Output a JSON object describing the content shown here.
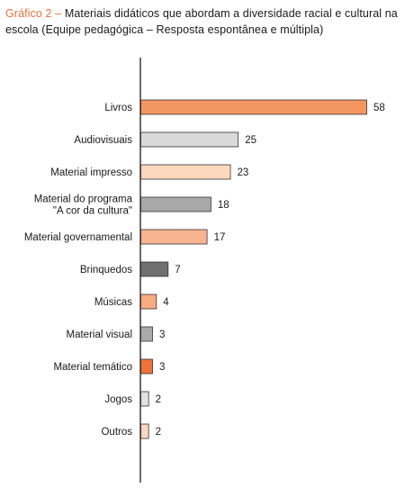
{
  "header": {
    "lead": "Gráfico 2 –",
    "text": "Materiais didáticos que abordam a diversidade racial e cultural na escola (Equipe pedagógica – Resposta espontânea e múltipla)"
  },
  "colors": {
    "accent": "#e8733a"
  },
  "chart_data": {
    "type": "bar",
    "orientation": "horizontal",
    "title": "Gráfico 2 – Materiais didáticos que abordam a diversidade racial e cultural na escola (Equipe pedagógica – Resposta espontânea e múltipla)",
    "categories": [
      [
        "Livros"
      ],
      [
        "Audiovisuais"
      ],
      [
        "Material impresso"
      ],
      [
        "Material do programa",
        "\"A cor da cultura\""
      ],
      [
        "Material governamental"
      ],
      [
        "Brinquedos"
      ],
      [
        "Músicas"
      ],
      [
        "Material visual"
      ],
      [
        "Material temático"
      ],
      [
        "Jogos"
      ],
      [
        "Outros"
      ]
    ],
    "values": [
      58,
      25,
      23,
      18,
      17,
      7,
      4,
      3,
      3,
      2,
      2
    ],
    "bar_colors": [
      "#f4965f",
      "#d9d9d9",
      "#fcd8bd",
      "#a8a8a8",
      "#f7b48f",
      "#707070",
      "#f8aa80",
      "#a9a9a9",
      "#ee7339",
      "#e2e2e2",
      "#fbd6c0"
    ],
    "xlim": [
      0,
      58
    ],
    "grid": false,
    "legend": "none",
    "value_labels": true
  }
}
